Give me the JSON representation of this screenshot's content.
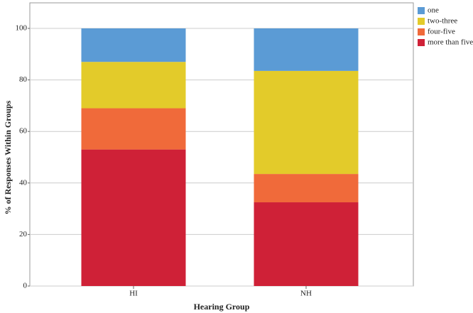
{
  "chart_data": {
    "type": "stacked_bar",
    "x_label": "Hearing Group",
    "y_label": "% of Responses Within Groups",
    "categories": [
      "HI",
      "NH"
    ],
    "series": [
      {
        "name": "more than five",
        "color": "#cf2137",
        "values": [
          53,
          32.5
        ]
      },
      {
        "name": "four-five",
        "color": "#f06a3a",
        "values": [
          16,
          11
        ]
      },
      {
        "name": "two-three",
        "color": "#e3cb2a",
        "values": [
          18,
          40
        ]
      },
      {
        "name": "one",
        "color": "#5b9bd5",
        "values": [
          13,
          16.5
        ]
      }
    ],
    "legend_order": [
      3,
      2,
      1,
      0
    ],
    "ylim": [
      0,
      100
    ],
    "yticks": [
      0,
      20,
      40,
      60,
      80,
      100
    ],
    "grid": true
  }
}
